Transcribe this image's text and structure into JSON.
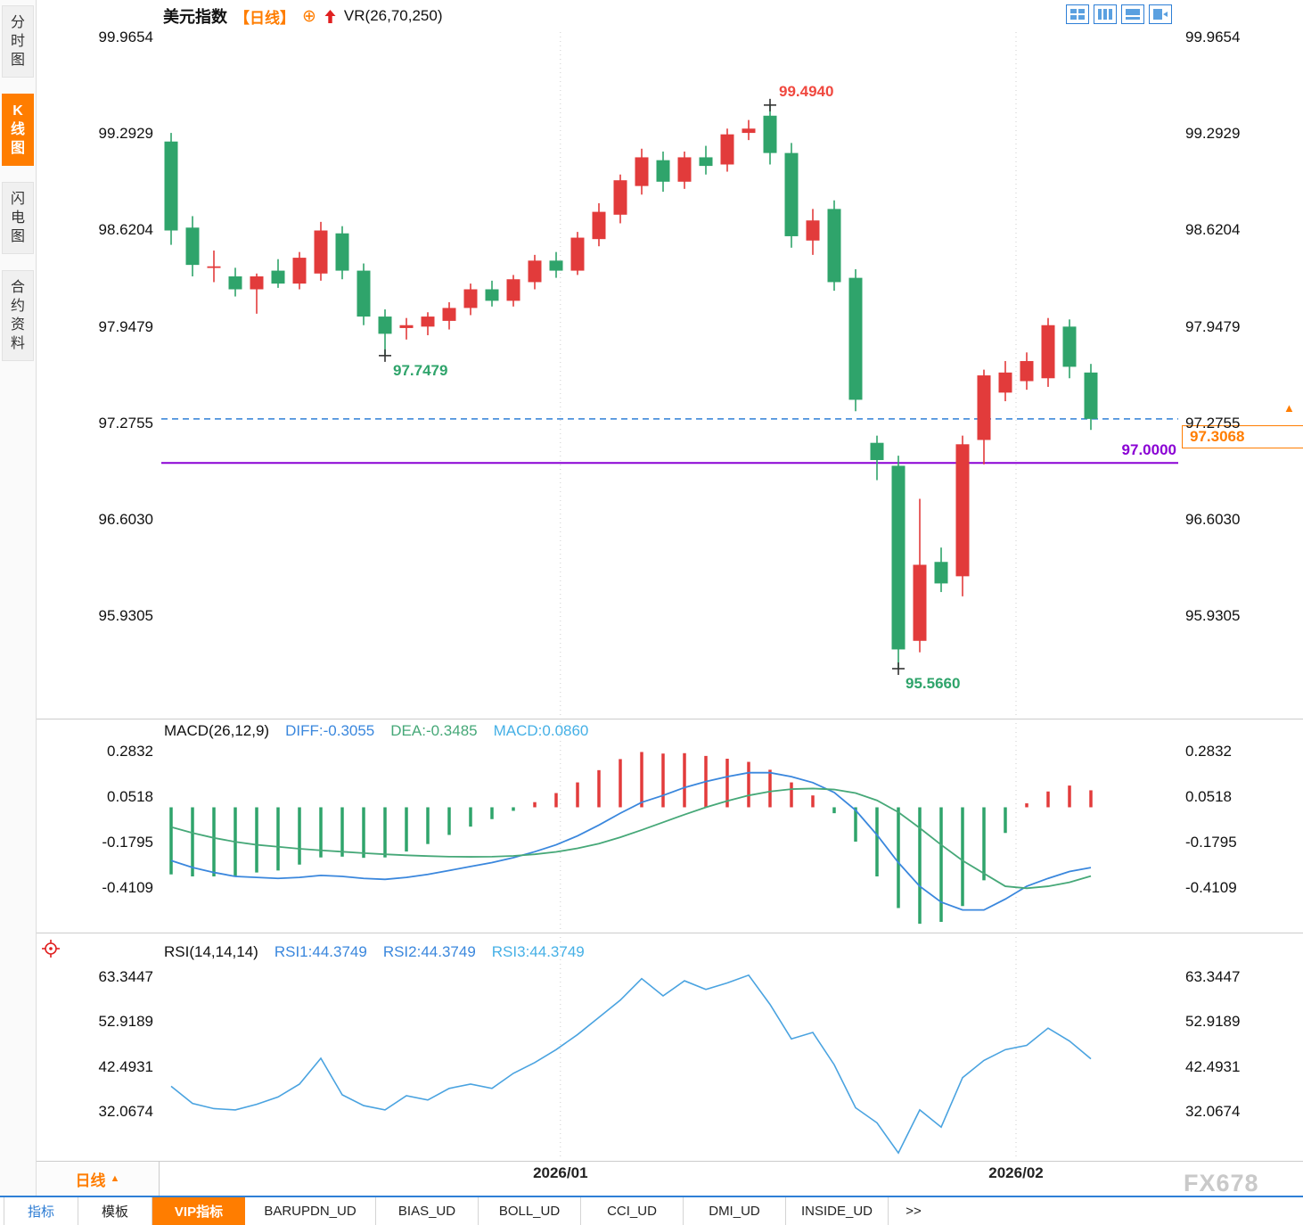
{
  "sidebar": {
    "items": [
      {
        "label": "分时图",
        "active": false
      },
      {
        "label": "K线图",
        "active": true
      },
      {
        "label": "闪电图",
        "active": false
      },
      {
        "label": "合约资料",
        "active": false
      }
    ]
  },
  "header": {
    "title": "美元指数",
    "period": "【日线】",
    "indicator": "VR(26,70,250)"
  },
  "icons": {
    "toolbar": [
      "layout-grid-icon",
      "layout-columns-icon",
      "layout-panel-chart-icon",
      "layout-switch-icon"
    ],
    "header": [
      "add-indicator-icon",
      "up-arrow-icon"
    ],
    "left": [
      "crosshair-icon"
    ]
  },
  "price_box": {
    "value": "97.3068"
  },
  "annotations_text": {
    "high": "99.4940",
    "swing_low": "97.7479",
    "low": "95.5660",
    "hline": "97.0000"
  },
  "panels": {
    "macd": {
      "title": "MACD(26,12,9)",
      "diff_label": "DIFF:-0.3055",
      "dea_label": "DEA:-0.3485",
      "macd_label": "MACD:0.0860"
    },
    "rsi": {
      "title": "RSI(14,14,14)",
      "rsi1_label": "RSI1:44.3749",
      "rsi2_label": "RSI2:44.3749",
      "rsi3_label": "RSI3:44.3749"
    }
  },
  "bottom": {
    "period": "日线",
    "tabs": [
      {
        "label": "指标"
      },
      {
        "label": "模板"
      },
      {
        "label": "VIP指标",
        "active": true
      },
      {
        "label": "BARUPDN_UD"
      },
      {
        "label": "BIAS_UD"
      },
      {
        "label": "BOLL_UD"
      },
      {
        "label": "CCI_UD"
      },
      {
        "label": "DMI_UD"
      },
      {
        "label": "INSIDE_UD"
      },
      {
        "label": ">>"
      }
    ]
  },
  "watermark": "FX678",
  "colors": {
    "up": "#e23b3b",
    "down": "#2fa46b",
    "diff": "#3a87dd",
    "dea": "#46a878",
    "rsi": "#4aa3e0",
    "accent": "#ff7d00",
    "dashed_level": "#2e7fd6",
    "purple_level": "#8a00d4"
  },
  "chart_data": {
    "type": "candlestick",
    "title": "美元指数 日线",
    "y_ticks": [
      "99.9654",
      "99.2929",
      "98.6204",
      "97.9479",
      "97.2755",
      "96.6030",
      "95.9305"
    ],
    "x_labels": [
      {
        "label": "2026/01",
        "index": 18.2
      },
      {
        "label": "2026/02",
        "index": 39.5
      }
    ],
    "candles": [
      [
        99.24,
        99.3,
        98.52,
        98.62
      ],
      [
        98.64,
        98.72,
        98.3,
        98.38
      ],
      [
        98.36,
        98.48,
        98.26,
        98.37
      ],
      [
        98.3,
        98.36,
        98.16,
        98.21
      ],
      [
        98.21,
        98.32,
        98.04,
        98.3
      ],
      [
        98.34,
        98.42,
        98.22,
        98.25
      ],
      [
        98.25,
        98.47,
        98.21,
        98.43
      ],
      [
        98.32,
        98.68,
        98.27,
        98.62
      ],
      [
        98.6,
        98.65,
        98.28,
        98.34
      ],
      [
        98.34,
        98.39,
        97.96,
        98.02
      ],
      [
        98.02,
        98.07,
        97.7479,
        97.9
      ],
      [
        97.94,
        98.01,
        97.86,
        97.96
      ],
      [
        97.95,
        98.05,
        97.89,
        98.02
      ],
      [
        97.99,
        98.12,
        97.93,
        98.08
      ],
      [
        98.08,
        98.25,
        98.03,
        98.21
      ],
      [
        98.21,
        98.27,
        98.09,
        98.13
      ],
      [
        98.13,
        98.31,
        98.09,
        98.28
      ],
      [
        98.26,
        98.45,
        98.21,
        98.41
      ],
      [
        98.41,
        98.47,
        98.29,
        98.34
      ],
      [
        98.34,
        98.61,
        98.31,
        98.57
      ],
      [
        98.56,
        98.81,
        98.51,
        98.75
      ],
      [
        98.73,
        99.01,
        98.67,
        98.97
      ],
      [
        98.93,
        99.19,
        98.87,
        99.13
      ],
      [
        99.11,
        99.17,
        98.89,
        98.96
      ],
      [
        98.96,
        99.17,
        98.91,
        99.13
      ],
      [
        99.13,
        99.21,
        99.01,
        99.07
      ],
      [
        99.08,
        99.33,
        99.03,
        99.29
      ],
      [
        99.3,
        99.39,
        99.25,
        99.33
      ],
      [
        99.42,
        99.494,
        99.08,
        99.16
      ],
      [
        99.16,
        99.23,
        98.5,
        98.58
      ],
      [
        98.55,
        98.77,
        98.45,
        98.69
      ],
      [
        98.77,
        98.83,
        98.2,
        98.26
      ],
      [
        98.29,
        98.35,
        97.36,
        97.44
      ],
      [
        97.14,
        97.19,
        96.88,
        97.02
      ],
      [
        96.98,
        97.05,
        95.566,
        95.7
      ],
      [
        95.76,
        96.75,
        95.68,
        96.29
      ],
      [
        96.31,
        96.41,
        96.1,
        96.16
      ],
      [
        96.21,
        97.19,
        96.07,
        97.13
      ],
      [
        97.16,
        97.65,
        96.99,
        97.61
      ],
      [
        97.49,
        97.71,
        97.43,
        97.63
      ],
      [
        97.57,
        97.77,
        97.51,
        97.71
      ],
      [
        97.59,
        98.01,
        97.53,
        97.96
      ],
      [
        97.95,
        98.0,
        97.59,
        97.67
      ],
      [
        97.63,
        97.69,
        97.23,
        97.3068
      ]
    ],
    "levels": [
      {
        "price": 97.3068,
        "style": "dashed",
        "color": "#2e7fd6"
      },
      {
        "price": 97.0,
        "style": "solid",
        "color": "#8a00d4"
      }
    ],
    "annotations": [
      {
        "index": 28,
        "price": 99.494,
        "label": "99.4940"
      },
      {
        "index": 10,
        "price": 97.7479,
        "label": "97.7479"
      },
      {
        "index": 34,
        "price": 95.566,
        "label": "95.5660"
      }
    ],
    "macd": {
      "params": "26,12,9",
      "y_ticks": [
        "0.2832",
        "0.0518",
        "-0.1795",
        "-0.4109"
      ],
      "last": {
        "diff": -0.3055,
        "dea": -0.3485,
        "macd": 0.086
      },
      "diff": [
        -0.27,
        -0.305,
        -0.33,
        -0.35,
        -0.355,
        -0.36,
        -0.355,
        -0.345,
        -0.35,
        -0.36,
        -0.365,
        -0.355,
        -0.34,
        -0.32,
        -0.3,
        -0.28,
        -0.255,
        -0.225,
        -0.19,
        -0.145,
        -0.09,
        -0.03,
        0.025,
        0.06,
        0.1,
        0.13,
        0.155,
        0.175,
        0.175,
        0.155,
        0.125,
        0.075,
        -0.015,
        -0.14,
        -0.28,
        -0.4,
        -0.48,
        -0.52,
        -0.52,
        -0.465,
        -0.4,
        -0.36,
        -0.325,
        -0.3055
      ],
      "dea": [
        -0.1,
        -0.13,
        -0.155,
        -0.175,
        -0.19,
        -0.2,
        -0.21,
        -0.218,
        -0.225,
        -0.232,
        -0.238,
        -0.243,
        -0.247,
        -0.25,
        -0.251,
        -0.25,
        -0.246,
        -0.238,
        -0.226,
        -0.208,
        -0.184,
        -0.152,
        -0.115,
        -0.076,
        -0.037,
        0.0,
        0.032,
        0.06,
        0.08,
        0.092,
        0.095,
        0.09,
        0.072,
        0.035,
        -0.025,
        -0.105,
        -0.19,
        -0.27,
        -0.335,
        -0.4,
        -0.41,
        -0.4,
        -0.38,
        -0.3485
      ]
    },
    "rsi": {
      "params": "14,14,14",
      "y_ticks": [
        "63.3447",
        "52.9189",
        "42.4931",
        "32.0674"
      ],
      "last": 44.3749,
      "values": [
        38,
        34,
        32.8,
        32.5,
        33.8,
        35.5,
        38.5,
        44.5,
        36,
        33.5,
        32.5,
        35.8,
        34.8,
        37.5,
        38.5,
        37.5,
        41,
        43.5,
        46.5,
        50,
        54,
        58,
        63,
        59,
        62.5,
        60.5,
        62,
        63.8,
        57,
        49,
        50.5,
        43,
        33,
        29.5,
        22.5,
        32.5,
        28.5,
        40,
        44,
        46.5,
        47.5,
        51.5,
        48.5,
        44.3749
      ]
    }
  }
}
